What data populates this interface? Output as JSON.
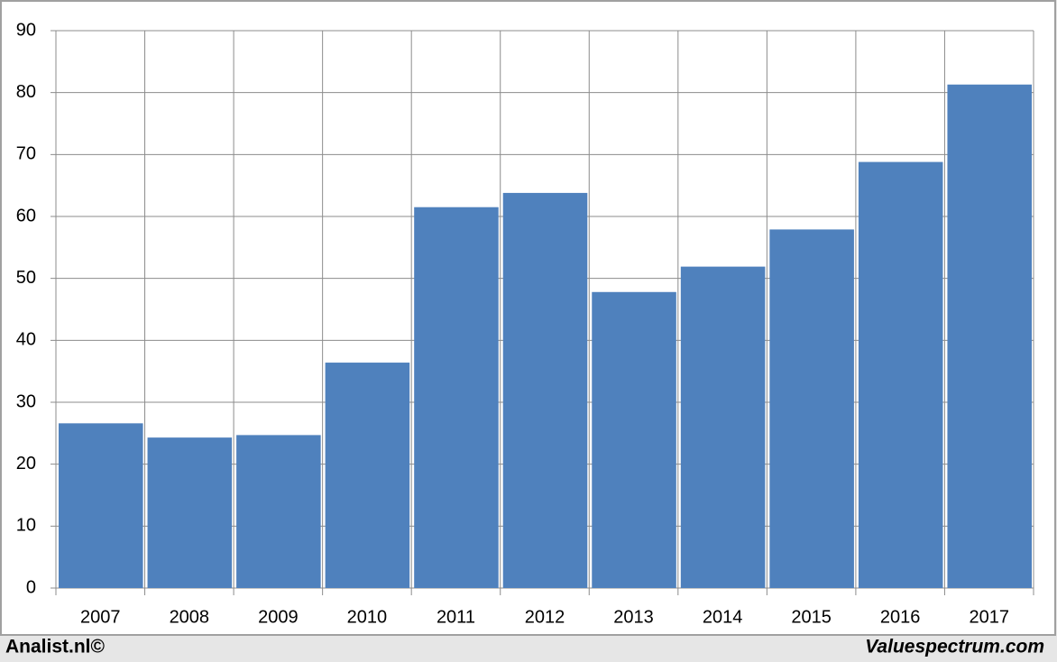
{
  "chart_data": {
    "type": "bar",
    "categories": [
      "2007",
      "2008",
      "2009",
      "2010",
      "2011",
      "2012",
      "2013",
      "2014",
      "2015",
      "2016",
      "2017"
    ],
    "values": [
      26.6,
      24.3,
      24.7,
      36.4,
      61.5,
      63.8,
      47.8,
      51.9,
      57.9,
      68.8,
      81.3
    ],
    "color": "#4f81bd",
    "ylim": [
      0,
      90
    ],
    "yticks": [
      0,
      10,
      20,
      30,
      40,
      50,
      60,
      70,
      80,
      90
    ],
    "grid": true
  },
  "footer": {
    "left": "Analist.nl©",
    "right": "Valuespectrum.com"
  }
}
